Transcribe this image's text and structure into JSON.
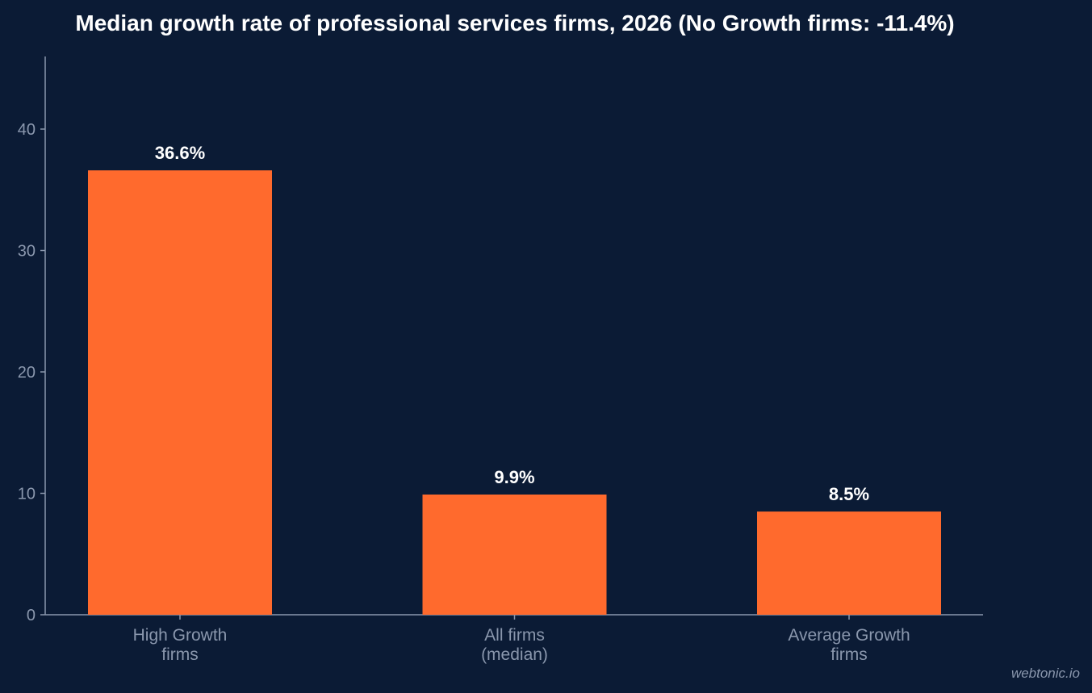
{
  "chart_data": {
    "type": "bar",
    "title": "Median growth rate of professional services firms, 2026 (No Growth firms: -11.4%)",
    "xlabel": "",
    "ylabel": "",
    "ylim": [
      0,
      46
    ],
    "yticks": [
      0,
      10,
      20,
      30,
      40
    ],
    "categories": [
      [
        "High Growth",
        "firms"
      ],
      [
        "All firms",
        "(median)"
      ],
      [
        "Average Growth",
        "firms"
      ]
    ],
    "values": [
      36.6,
      9.9,
      8.5
    ],
    "value_labels": [
      "36.6%",
      "9.9%",
      "8.5%"
    ],
    "bar_color": "#ff6a2d",
    "grid": false,
    "legend": "none"
  },
  "watermark": "webtonic.io"
}
